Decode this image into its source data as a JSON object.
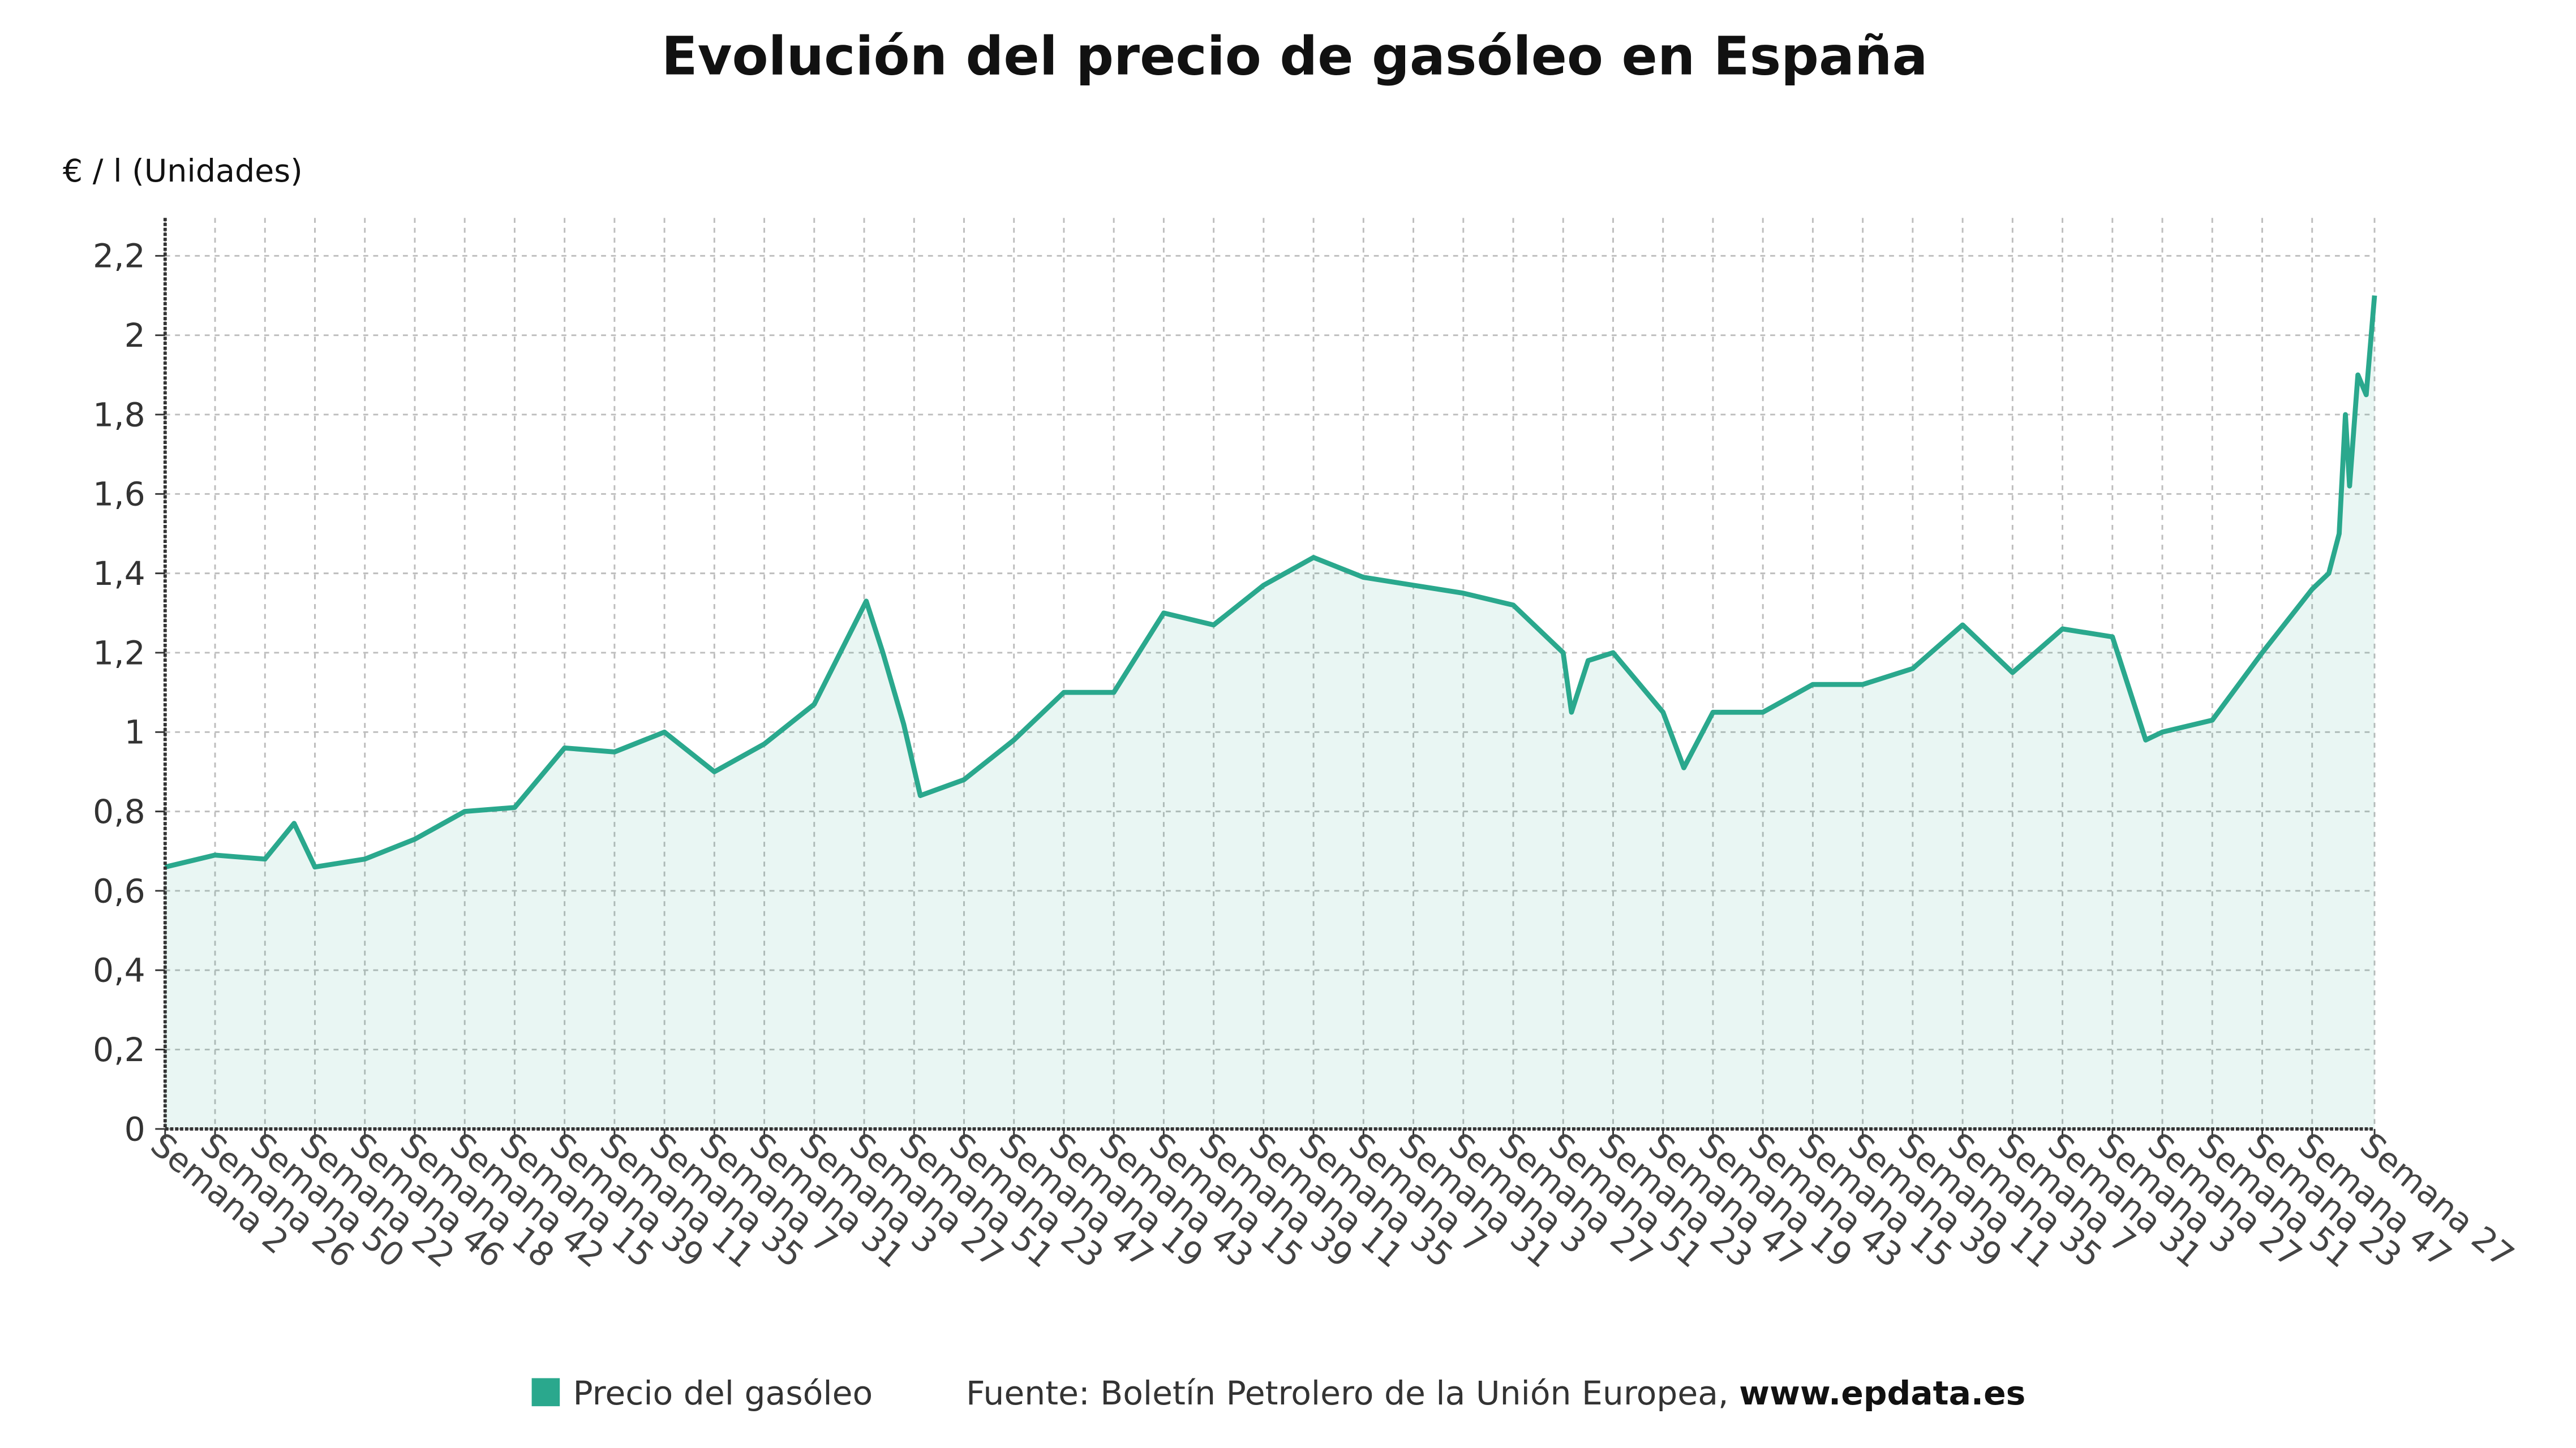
{
  "chart_data": {
    "type": "line",
    "title": "Evolución del precio de gasóleo en España",
    "y_label": "€ / l (Unidades)",
    "source": "Fuente: Boletín Petrolero de la Unión Europea,",
    "source_link": "www.epdata.es",
    "x": [
      0,
      24,
      48,
      62,
      72,
      96,
      120,
      144,
      168,
      192,
      216,
      240,
      264,
      288,
      312,
      337,
      345,
      355,
      363,
      384,
      408,
      432,
      456,
      480,
      504,
      528,
      552,
      576,
      600,
      624,
      648,
      672,
      676,
      684,
      696,
      720,
      730,
      744,
      768,
      792,
      816,
      840,
      864,
      888,
      912,
      936,
      952,
      960,
      984,
      1008,
      1032,
      1040,
      1045,
      1048,
      1050,
      1054,
      1058,
      1062
    ],
    "series": [
      {
        "name": "Precio del gasóleo",
        "color": "#2aa88d",
        "values": [
          0.66,
          0.69,
          0.68,
          0.77,
          0.66,
          0.68,
          0.73,
          0.8,
          0.81,
          0.96,
          0.95,
          1.0,
          0.9,
          0.97,
          1.07,
          1.33,
          1.2,
          1.02,
          0.84,
          0.88,
          0.98,
          1.1,
          1.1,
          1.3,
          1.27,
          1.37,
          1.44,
          1.39,
          1.37,
          1.35,
          1.32,
          1.2,
          1.05,
          1.18,
          1.2,
          1.05,
          0.91,
          1.05,
          1.05,
          1.12,
          1.12,
          1.16,
          1.27,
          1.15,
          1.26,
          1.24,
          0.98,
          1.0,
          1.03,
          1.2,
          1.36,
          1.4,
          1.5,
          1.8,
          1.62,
          1.9,
          1.85,
          2.1
        ]
      }
    ],
    "xlim": [
      0,
      1062
    ],
    "xticks": [
      {
        "value": 0,
        "label": "Semana 2"
      },
      {
        "value": 24,
        "label": "Semana 26"
      },
      {
        "value": 48,
        "label": "Semana 50"
      },
      {
        "value": 72,
        "label": "Semana 22"
      },
      {
        "value": 96,
        "label": "Semana 46"
      },
      {
        "value": 120,
        "label": "Semana 18"
      },
      {
        "value": 144,
        "label": "Semana 42"
      },
      {
        "value": 168,
        "label": "Semana 15"
      },
      {
        "value": 192,
        "label": "Semana 39"
      },
      {
        "value": 216,
        "label": "Semana 11"
      },
      {
        "value": 240,
        "label": "Semana 35"
      },
      {
        "value": 264,
        "label": "Semana 7"
      },
      {
        "value": 288,
        "label": "Semana 31"
      },
      {
        "value": 312,
        "label": "Semana 3"
      },
      {
        "value": 336,
        "label": "Semana 27"
      },
      {
        "value": 360,
        "label": "Semana 51"
      },
      {
        "value": 384,
        "label": "Semana 23"
      },
      {
        "value": 408,
        "label": "Semana 47"
      },
      {
        "value": 432,
        "label": "Semana 19"
      },
      {
        "value": 456,
        "label": "Semana 43"
      },
      {
        "value": 480,
        "label": "Semana 15"
      },
      {
        "value": 504,
        "label": "Semana 39"
      },
      {
        "value": 528,
        "label": "Semana 11"
      },
      {
        "value": 552,
        "label": "Semana 35"
      },
      {
        "value": 576,
        "label": "Semana 7"
      },
      {
        "value": 600,
        "label": "Semana 31"
      },
      {
        "value": 624,
        "label": "Semana 3"
      },
      {
        "value": 648,
        "label": "Semana 27"
      },
      {
        "value": 672,
        "label": "Semana 51"
      },
      {
        "value": 696,
        "label": "Semana 23"
      },
      {
        "value": 720,
        "label": "Semana 47"
      },
      {
        "value": 744,
        "label": "Semana 19"
      },
      {
        "value": 768,
        "label": "Semana 43"
      },
      {
        "value": 792,
        "label": "Semana 15"
      },
      {
        "value": 816,
        "label": "Semana 39"
      },
      {
        "value": 840,
        "label": "Semana 11"
      },
      {
        "value": 864,
        "label": "Semana 35"
      },
      {
        "value": 888,
        "label": "Semana 7"
      },
      {
        "value": 912,
        "label": "Semana 31"
      },
      {
        "value": 936,
        "label": "Semana 3"
      },
      {
        "value": 960,
        "label": "Semana 27"
      },
      {
        "value": 984,
        "label": "Semana 51"
      },
      {
        "value": 1008,
        "label": "Semana 23"
      },
      {
        "value": 1032,
        "label": "Semana 47"
      },
      {
        "value": 1062,
        "label": "Semana 27"
      }
    ],
    "ylim": [
      0,
      2.2
    ],
    "yticks": [
      0,
      {
        "value": 0.2,
        "label": "0,2"
      },
      {
        "value": 0.4,
        "label": "0,4"
      },
      {
        "value": 0.6,
        "label": "0,6"
      },
      {
        "value": 0.8,
        "label": "0,8"
      },
      1,
      {
        "value": 1.2,
        "label": "1,2"
      },
      {
        "value": 1.4,
        "label": "1,4"
      },
      {
        "value": 1.6,
        "label": "1,6"
      },
      {
        "value": 1.8,
        "label": "1,8"
      },
      2,
      {
        "value": 2.2,
        "label": "2,2"
      }
    ],
    "grid": true
  }
}
